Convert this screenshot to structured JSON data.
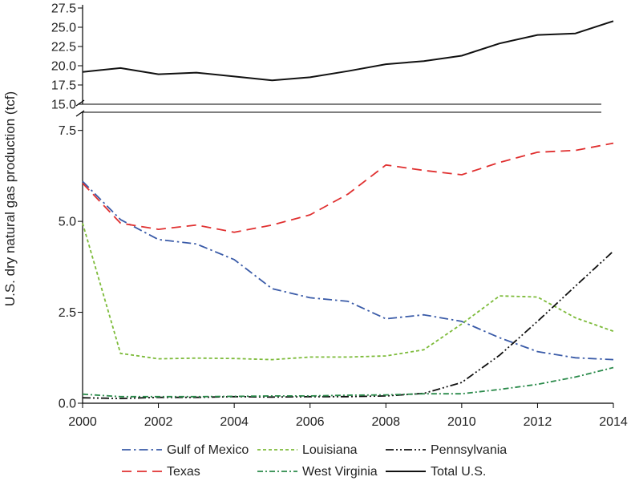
{
  "chart_data": {
    "type": "line",
    "title": "",
    "xlabel": "",
    "ylabel": "U.S. dry natural gas production (tcf)",
    "x": [
      2000,
      2001,
      2002,
      2003,
      2004,
      2005,
      2006,
      2007,
      2008,
      2009,
      2010,
      2011,
      2012,
      2013,
      2014
    ],
    "xlim": [
      2000,
      2014
    ],
    "xticks": [
      "2000",
      "2002",
      "2004",
      "2006",
      "2008",
      "2010",
      "2012",
      "2014"
    ],
    "broken_axis": true,
    "upper_panel": {
      "ylim": [
        15.0,
        27.5
      ],
      "yticks": [
        "15.0",
        "17.5",
        "20.0",
        "22.5",
        "25.0",
        "27.5"
      ]
    },
    "lower_panel": {
      "ylim": [
        0.0,
        8.0
      ],
      "yticks": [
        "0.0",
        "2.5",
        "5.0",
        "7.5"
      ]
    },
    "grid": false,
    "legend_position": "bottom",
    "series": [
      {
        "name": "Gulf of Mexico",
        "panel": "lower",
        "color": "#3a5ba8",
        "dash": "dashdot",
        "values": [
          6.1,
          5.05,
          4.5,
          4.38,
          3.95,
          3.15,
          2.9,
          2.8,
          2.32,
          2.43,
          2.25,
          1.8,
          1.42,
          1.25,
          1.2
        ]
      },
      {
        "name": "Louisiana",
        "panel": "lower",
        "color": "#7dbb3a",
        "dash": "dotted",
        "values": [
          4.95,
          1.37,
          1.22,
          1.24,
          1.23,
          1.2,
          1.27,
          1.27,
          1.3,
          1.47,
          2.18,
          2.95,
          2.92,
          2.35,
          1.98
        ]
      },
      {
        "name": "Pennsylvania",
        "panel": "lower",
        "color": "#111111",
        "dash": "dashdotdot",
        "values": [
          0.15,
          0.13,
          0.16,
          0.16,
          0.18,
          0.17,
          0.18,
          0.18,
          0.2,
          0.27,
          0.57,
          1.32,
          2.25,
          3.22,
          4.18
        ]
      },
      {
        "name": "Texas",
        "panel": "lower",
        "color": "#e03030",
        "dash": "dashed",
        "values": [
          6.05,
          4.95,
          4.78,
          4.9,
          4.7,
          4.9,
          5.18,
          5.75,
          6.55,
          6.4,
          6.28,
          6.62,
          6.9,
          6.95,
          7.15
        ]
      },
      {
        "name": "West Virginia",
        "panel": "lower",
        "color": "#2a8a4a",
        "dash": "dashdotsmall",
        "values": [
          0.25,
          0.18,
          0.18,
          0.18,
          0.19,
          0.2,
          0.2,
          0.22,
          0.23,
          0.26,
          0.26,
          0.38,
          0.52,
          0.72,
          0.98
        ]
      },
      {
        "name": "Total U.S.",
        "panel": "upper",
        "color": "#111111",
        "dash": "solid",
        "values": [
          19.2,
          19.7,
          18.9,
          19.1,
          18.6,
          18.1,
          18.5,
          19.3,
          20.2,
          20.6,
          21.3,
          22.9,
          24.0,
          24.2,
          25.8
        ]
      }
    ]
  }
}
